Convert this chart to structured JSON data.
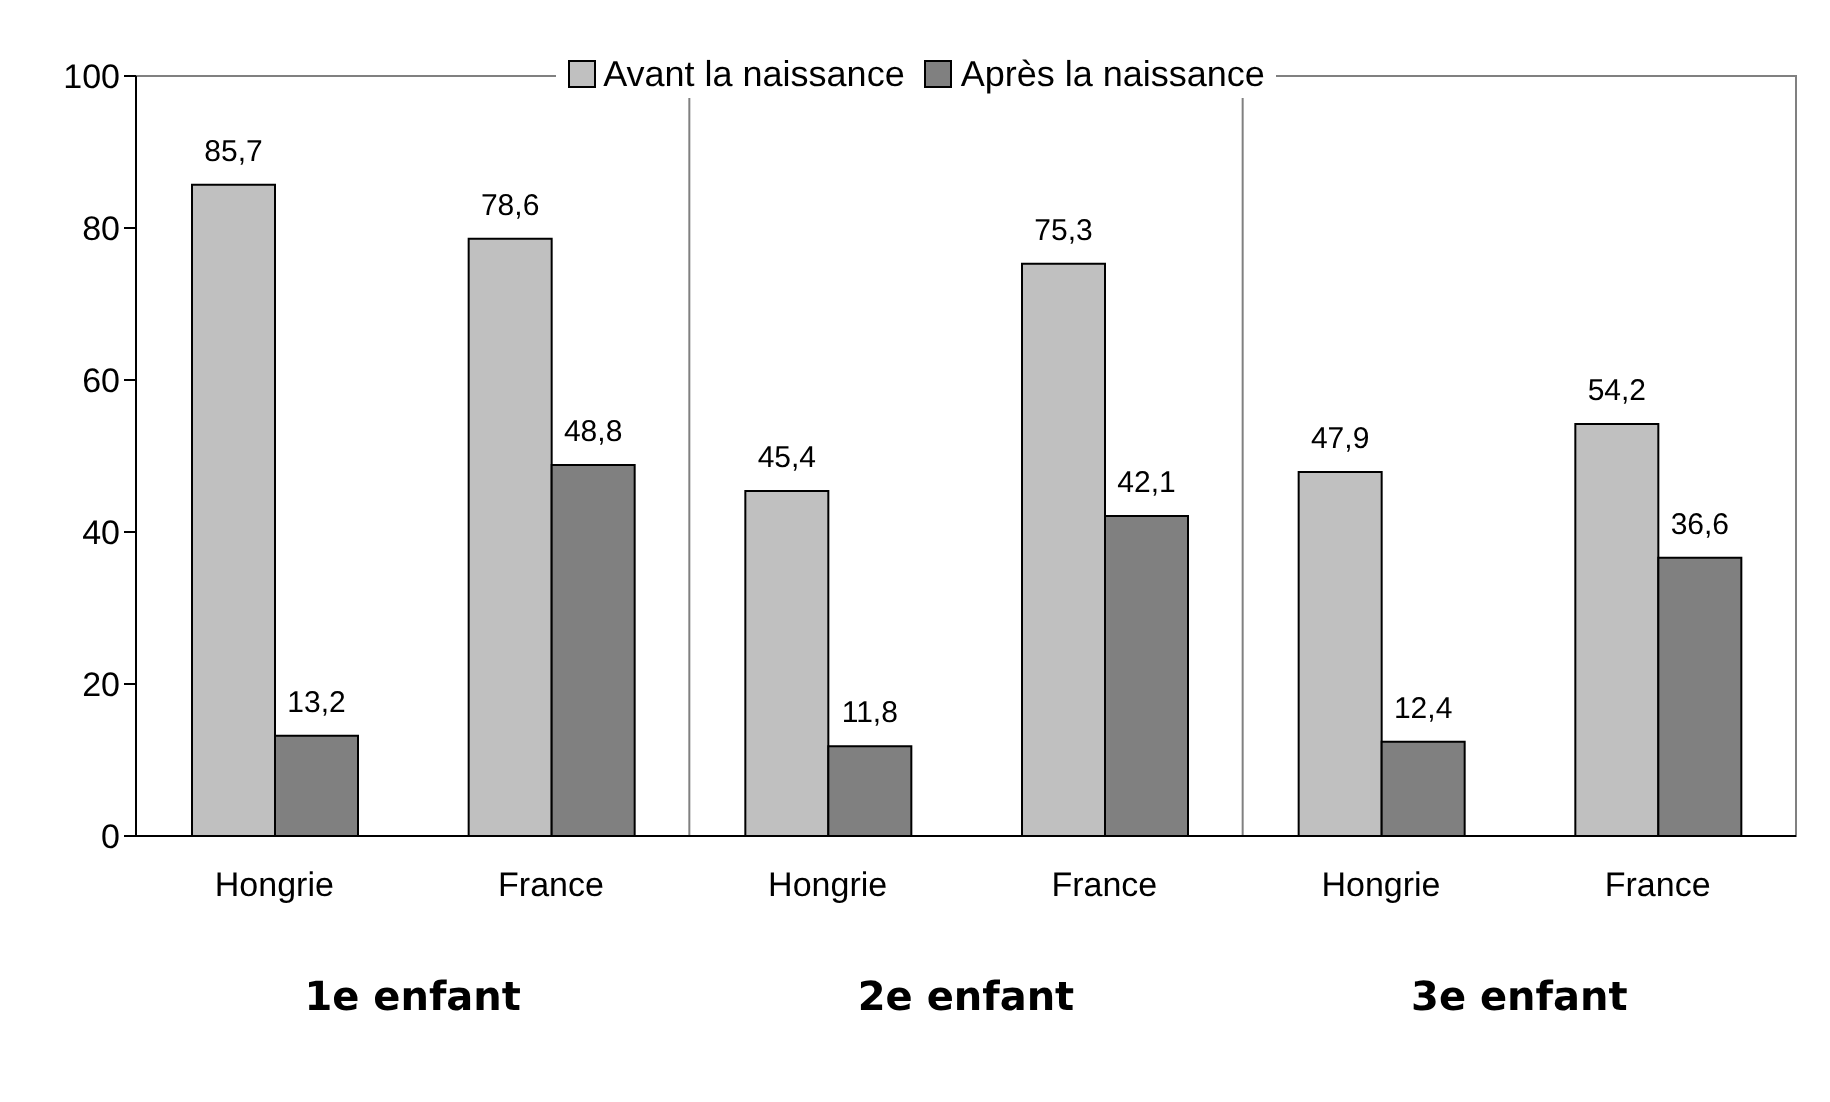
{
  "chart_data": {
    "type": "bar",
    "categories": [
      "Hongrie",
      "France",
      "Hongrie",
      "France",
      "Hongrie",
      "France"
    ],
    "series": [
      {
        "name": "Avant la naissance",
        "color": "#c0c0c0",
        "values": [
          85.7,
          78.6,
          45.4,
          75.3,
          47.9,
          54.2
        ],
        "value_labels": [
          "85,7",
          "78,6",
          "45,4",
          "75,3",
          "47,9",
          "54,2"
        ]
      },
      {
        "name": "Après la naissance",
        "color": "#808080",
        "values": [
          13.2,
          48.8,
          11.8,
          42.1,
          12.4,
          36.6
        ],
        "value_labels": [
          "13,2",
          "48,8",
          "11,8",
          "42,1",
          "12,4",
          "36,6"
        ]
      }
    ],
    "ylim": [
      0,
      100
    ],
    "yticks": [
      0,
      20,
      40,
      60,
      80,
      100
    ],
    "grid": false,
    "legend": "top",
    "annotations": [
      "1e enfant",
      "2e enfant",
      "3e enfant"
    ]
  }
}
